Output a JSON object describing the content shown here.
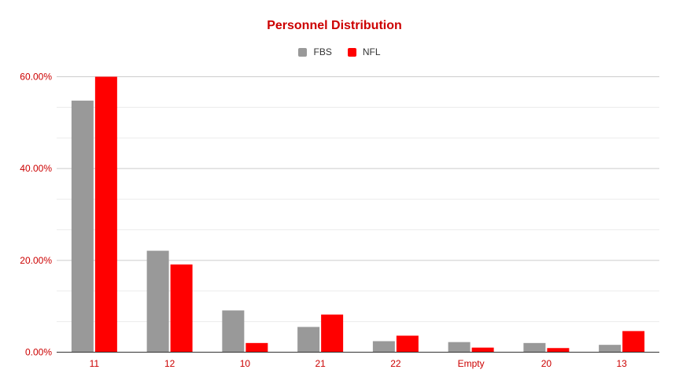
{
  "chart_data": {
    "type": "bar",
    "title": "Personnel Distribution",
    "categories": [
      "11",
      "12",
      "10",
      "21",
      "22",
      "Empty",
      "20",
      "13"
    ],
    "series": [
      {
        "name": "FBS",
        "color": "#999999",
        "values": [
          54.8,
          22.1,
          9.1,
          5.5,
          2.4,
          2.2,
          2.0,
          1.6
        ]
      },
      {
        "name": "NFL",
        "color": "#ff0000",
        "values": [
          60.0,
          19.1,
          2.0,
          8.2,
          3.6,
          1.0,
          0.9,
          4.6
        ]
      }
    ],
    "yticks": [
      {
        "value": 0,
        "label": "0.00%"
      },
      {
        "value": 20,
        "label": "20.00%"
      },
      {
        "value": 40,
        "label": "40.00%"
      },
      {
        "value": 60,
        "label": "60.00%"
      }
    ],
    "ylim": [
      0,
      60
    ],
    "minor_gridlines": [
      6.67,
      13.33,
      26.67,
      33.33,
      46.67,
      53.33
    ],
    "grid": true,
    "legend_position": "top-center",
    "xlabel": "",
    "ylabel": ""
  }
}
